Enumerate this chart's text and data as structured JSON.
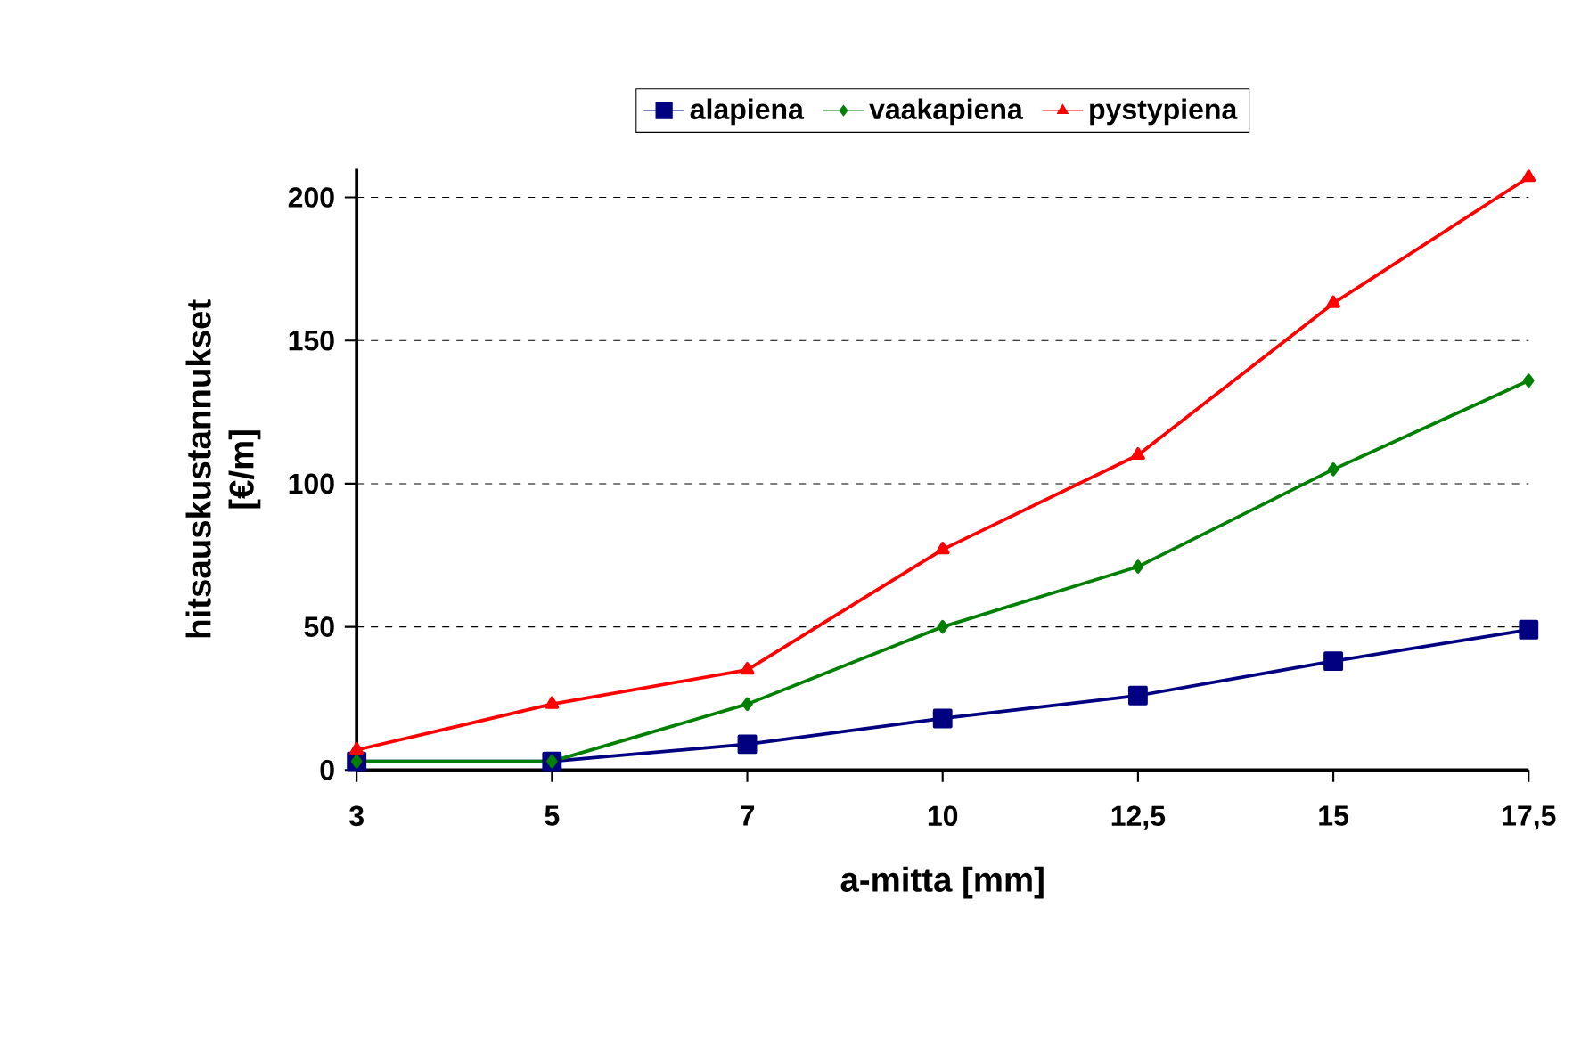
{
  "chart_data": {
    "type": "line",
    "xlabel": "a-mitta [mm]",
    "ylabel": "hitsauskustannukset [€/m]",
    "categories": [
      "3",
      "5",
      "7",
      "10",
      "12,5",
      "15",
      "17,5"
    ],
    "ylim": [
      0,
      210
    ],
    "yticks": [
      0,
      50,
      100,
      150,
      200
    ],
    "grid": "y",
    "legend": "top",
    "series": [
      {
        "name": "alapiena",
        "color": "#000080",
        "marker": "square",
        "values": [
          3,
          3,
          9,
          18,
          26,
          38,
          49
        ]
      },
      {
        "name": "vaakapiena",
        "color": "#008000",
        "marker": "diamond",
        "values": [
          3,
          3,
          23,
          50,
          71,
          105,
          136
        ]
      },
      {
        "name": "pystypiena",
        "color": "#ff0000",
        "marker": "triangle",
        "values": [
          7,
          23,
          35,
          77,
          110,
          163,
          207
        ]
      }
    ]
  }
}
